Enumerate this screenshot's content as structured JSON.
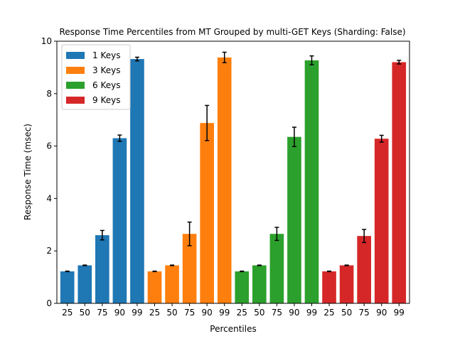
{
  "chart_data": {
    "type": "bar",
    "title": "Response Time Percentiles from MT Grouped by multi-GET Keys (Sharding: False)",
    "xlabel": "Percentiles",
    "ylabel": "Response Time (msec)",
    "ylim": [
      0,
      10
    ],
    "yticks": [
      "0",
      "2",
      "4",
      "6",
      "8",
      "10"
    ],
    "categories": [
      "25",
      "50",
      "75",
      "90",
      "99"
    ],
    "legend_position": "top-left",
    "grid": false,
    "series": [
      {
        "name": "1 Keys",
        "color": "#1f77b4",
        "values": [
          1.22,
          1.45,
          2.6,
          6.3,
          9.32
        ],
        "errors": [
          0.01,
          0.01,
          0.18,
          0.12,
          0.07
        ]
      },
      {
        "name": "3 Keys",
        "color": "#ff7f0e",
        "values": [
          1.22,
          1.45,
          2.65,
          6.88,
          9.38
        ],
        "errors": [
          0.01,
          0.01,
          0.45,
          0.67,
          0.2
        ]
      },
      {
        "name": "6 Keys",
        "color": "#2ca02c",
        "values": [
          1.22,
          1.45,
          2.65,
          6.35,
          9.27
        ],
        "errors": [
          0.01,
          0.01,
          0.25,
          0.37,
          0.17
        ]
      },
      {
        "name": "9 Keys",
        "color": "#d62728",
        "values": [
          1.22,
          1.45,
          2.57,
          6.28,
          9.2
        ],
        "errors": [
          0.01,
          0.01,
          0.25,
          0.13,
          0.07
        ]
      }
    ]
  }
}
